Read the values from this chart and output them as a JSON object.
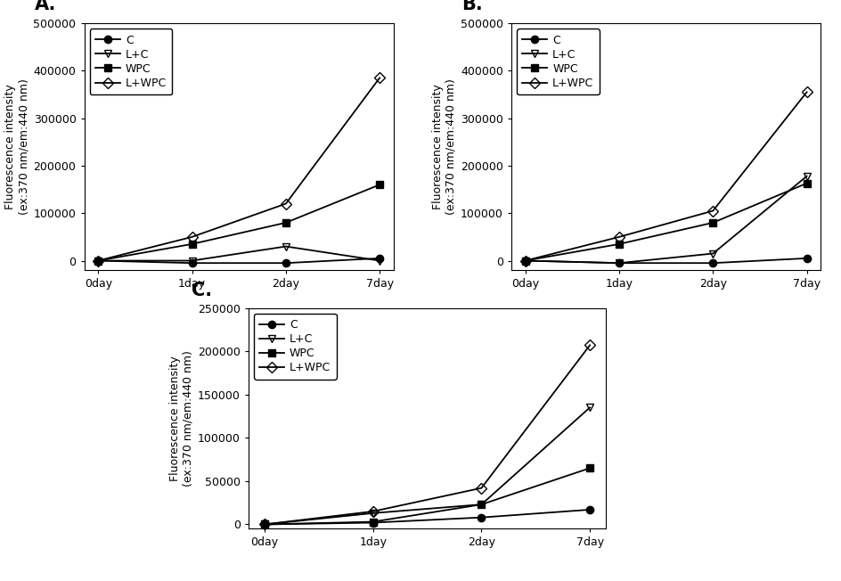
{
  "x_labels": [
    "0day",
    "1day",
    "2day",
    "7day"
  ],
  "x_values": [
    0,
    1,
    2,
    3
  ],
  "panels": [
    {
      "label": "A.",
      "ylim": [
        -20000,
        500000
      ],
      "yticks": [
        0,
        100000,
        200000,
        300000,
        400000,
        500000
      ],
      "series": {
        "C": {
          "values": [
            0,
            -5000,
            -5000,
            5000
          ]
        },
        "L+C": {
          "values": [
            0,
            0,
            30000,
            0
          ]
        },
        "WPC": {
          "values": [
            0,
            35000,
            80000,
            160000
          ]
        },
        "L+WPC": {
          "values": [
            0,
            50000,
            120000,
            385000
          ]
        }
      }
    },
    {
      "label": "B.",
      "ylim": [
        -20000,
        500000
      ],
      "yticks": [
        0,
        100000,
        200000,
        300000,
        400000,
        500000
      ],
      "series": {
        "C": {
          "values": [
            0,
            -5000,
            -5000,
            5000
          ]
        },
        "L+C": {
          "values": [
            0,
            -5000,
            15000,
            178000
          ]
        },
        "WPC": {
          "values": [
            0,
            35000,
            80000,
            163000
          ]
        },
        "L+WPC": {
          "values": [
            0,
            50000,
            105000,
            355000
          ]
        }
      }
    },
    {
      "label": "C.",
      "ylim": [
        -5000,
        250000
      ],
      "yticks": [
        0,
        50000,
        100000,
        150000,
        200000,
        250000
      ],
      "series": {
        "C": {
          "values": [
            0,
            2000,
            8000,
            17000
          ]
        },
        "L+C": {
          "values": [
            0,
            13000,
            23000,
            135000
          ]
        },
        "WPC": {
          "values": [
            0,
            3000,
            23000,
            65000
          ]
        },
        "L+WPC": {
          "values": [
            0,
            15000,
            42000,
            207000
          ]
        }
      }
    }
  ],
  "ylabel": "Fluorescence intensity\n(ex:370 nm/em:440 nm)",
  "series_order": [
    "C",
    "L+C",
    "WPC",
    "L+WPC"
  ],
  "markers": {
    "C": {
      "marker": "o",
      "filled": true
    },
    "L+C": {
      "marker": "v",
      "filled": false
    },
    "WPC": {
      "marker": "s",
      "filled": true
    },
    "L+WPC": {
      "marker": "D",
      "filled": false
    }
  },
  "line_color": "#000000",
  "background_color": "#ffffff",
  "label_fontsize": 15,
  "tick_fontsize": 9,
  "ylabel_fontsize": 9,
  "legend_fontsize": 9,
  "markersize": 6,
  "linewidth": 1.3
}
